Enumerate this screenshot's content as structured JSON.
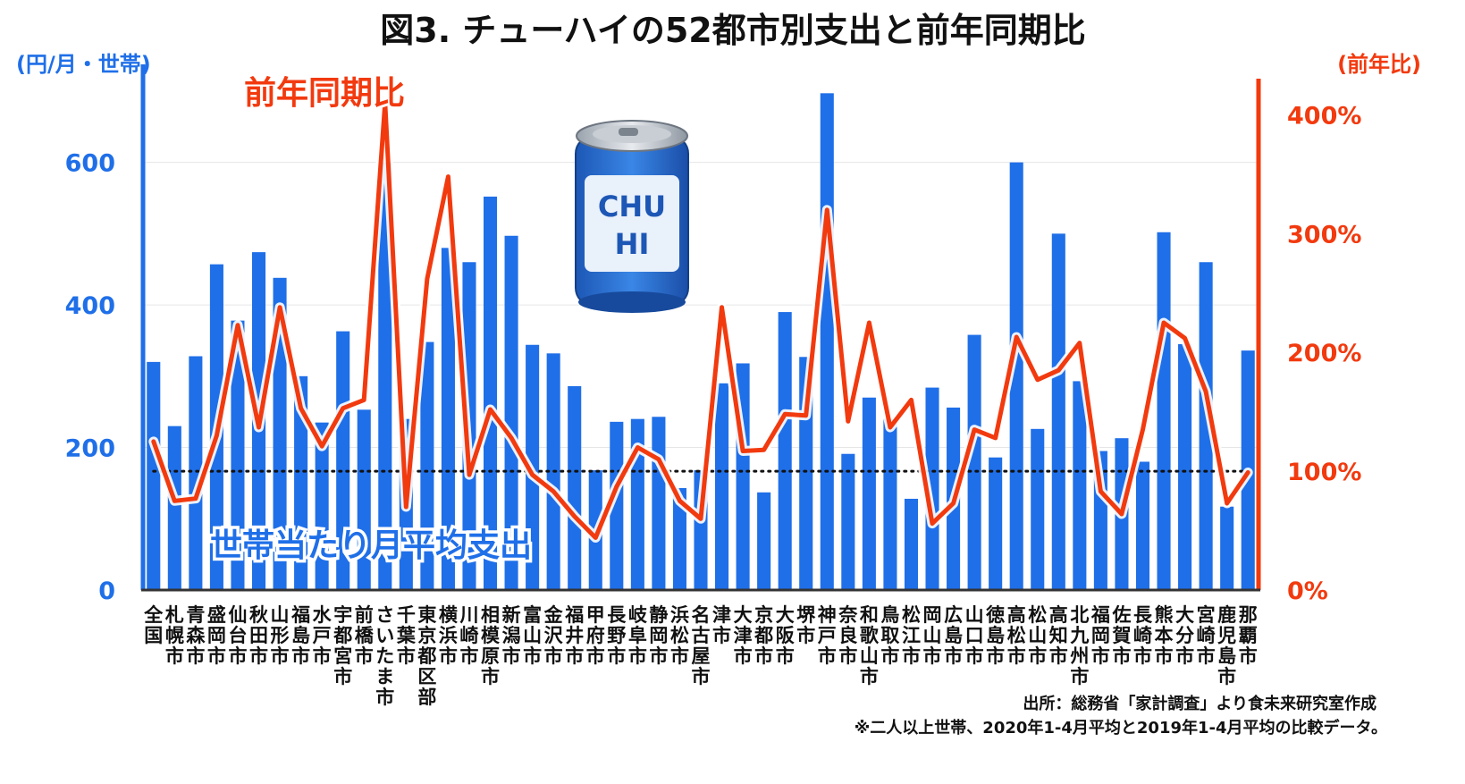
{
  "title": "図3. チューハイの52都市別支出と前年同期比",
  "left_axis_unit": "(円/月・世帯)",
  "right_axis_unit": "(前年比)",
  "line_label": "前年同期比",
  "bar_label": "世帯当たり月平均支出",
  "source_note": "出所：総務省「家計調査」より食未来研究室作成",
  "period_note": "※二人以上世帯、2020年1-4月平均と2019年1-4月平均の比較データ。",
  "can_icon_text": [
    "CHU",
    "HI"
  ],
  "colors": {
    "bar": "#1f6fe8",
    "line": "#f23a0f",
    "left_axis": "#1f6fe8",
    "right_axis": "#f23a0f"
  },
  "chart_data": {
    "type": "bar",
    "categories": [
      "全国",
      "札幌市",
      "青森市",
      "盛岡市",
      "仙台市",
      "秋田市",
      "山形市",
      "福島市",
      "水戸市",
      "宇都宮市",
      "前橋市",
      "さいたま市",
      "千葉市",
      "東京都区部",
      "横浜市",
      "川崎市",
      "相模原市",
      "新潟市",
      "富山市",
      "金沢市",
      "福井市",
      "甲府市",
      "長野市",
      "岐阜市",
      "静岡市",
      "浜松市",
      "名古屋市",
      "津市",
      "大津市",
      "京都市",
      "大阪市",
      "堺市",
      "神戸市",
      "奈良市",
      "和歌山市",
      "鳥取市",
      "松江市",
      "岡山市",
      "広島市",
      "山口市",
      "徳島市",
      "高松市",
      "松山市",
      "高知市",
      "北九州市",
      "福岡市",
      "佐賀市",
      "長崎市",
      "熊本市",
      "大分市",
      "宮崎市",
      "鹿児島市",
      "那覇市"
    ],
    "series": [
      {
        "type": "bar",
        "axis": "left",
        "values": [
          320,
          230,
          328,
          457,
          378,
          474,
          438,
          300,
          235,
          363,
          253,
          600,
          240,
          348,
          480,
          460,
          552,
          497,
          344,
          332,
          286,
          168,
          236,
          240,
          243,
          143,
          168,
          290,
          318,
          137,
          390,
          327,
          697,
          191,
          270,
          240,
          128,
          284,
          256,
          358,
          186,
          600,
          226,
          500,
          293,
          195,
          213,
          180,
          502,
          345,
          460,
          117,
          336
        ]
      },
      {
        "type": "line",
        "axis": "right",
        "values": [
          125,
          75,
          77,
          130,
          223,
          137,
          238,
          153,
          121,
          153,
          160,
          410,
          70,
          262,
          348,
          97,
          152,
          128,
          97,
          83,
          62,
          44,
          87,
          120,
          110,
          75,
          60,
          238,
          117,
          118,
          148,
          147,
          320,
          142,
          225,
          137,
          160,
          56,
          73,
          135,
          128,
          213,
          177,
          185,
          208,
          83,
          64,
          135,
          225,
          212,
          167,
          73,
          99
        ]
      }
    ],
    "reference_line": {
      "axis": "right",
      "value": 100,
      "style": "dotted"
    },
    "y_left": {
      "ticks": [
        0,
        200,
        400,
        600
      ],
      "lim": [
        0,
        730
      ]
    },
    "y_right": {
      "ticks": [
        "0%",
        "100%",
        "200%",
        "300%",
        "400%"
      ],
      "lim": [
        0,
        438
      ]
    }
  }
}
